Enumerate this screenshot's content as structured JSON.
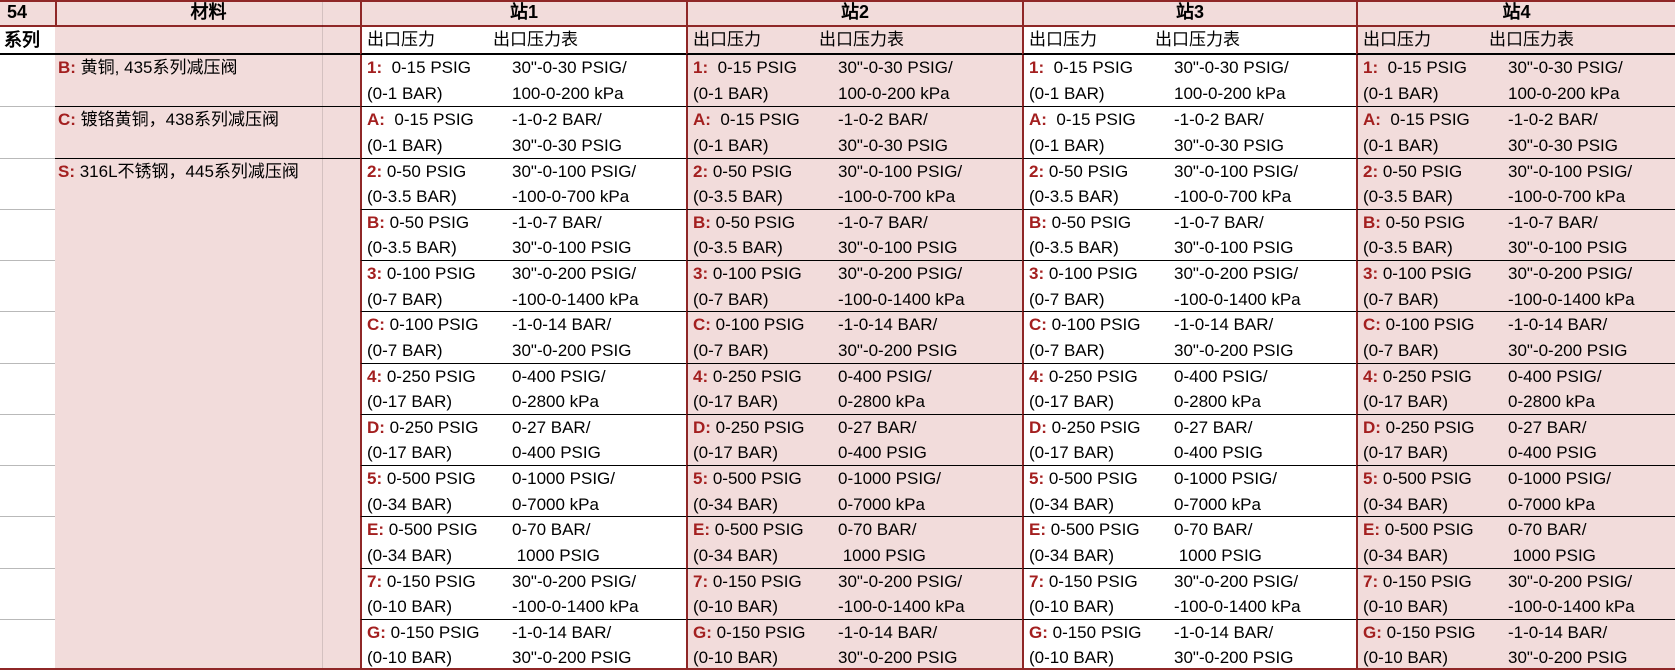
{
  "table": {
    "series_number": "54",
    "series_label": "系列",
    "material_header": "材料",
    "station_headers": [
      "站1",
      "站2",
      "站3",
      "站4"
    ],
    "sub_headers": {
      "pressure": "出口压力",
      "gauge": "出口压力表"
    },
    "materials": [
      {
        "code": "B:",
        "desc": " 黄铜, 435系列减压阀"
      },
      {
        "code": "C:",
        "desc": " 镀铬黄铜，438系列减压阀"
      },
      {
        "code": "S:",
        "desc": " 316L不锈钢，445系列减压阀"
      }
    ],
    "options": [
      {
        "code": "1:",
        "p1": "  0-15 PSIG",
        "p2": "(0-1 BAR)",
        "g1": "30\"-0-30 PSIG/",
        "g2": "100-0-200 kPa"
      },
      {
        "code": "A:",
        "p1": "  0-15 PSIG",
        "p2": "(0-1 BAR)",
        "g1": "-1-0-2 BAR/",
        "g2": "30\"-0-30 PSIG"
      },
      {
        "code": "2:",
        "p1": " 0-50 PSIG",
        "p2": "(0-3.5 BAR)",
        "g1": "30\"-0-100 PSIG/",
        "g2": "-100-0-700 kPa"
      },
      {
        "code": "B:",
        "p1": " 0-50 PSIG",
        "p2": "(0-3.5 BAR)",
        "g1": "-1-0-7 BAR/",
        "g2": "30\"-0-100 PSIG"
      },
      {
        "code": "3:",
        "p1": " 0-100 PSIG",
        "p2": "(0-7 BAR)",
        "g1": "30\"-0-200 PSIG/",
        "g2": "-100-0-1400 kPa"
      },
      {
        "code": "C:",
        "p1": " 0-100 PSIG",
        "p2": "(0-7 BAR)",
        "g1": "-1-0-14 BAR/",
        "g2": "30\"-0-200 PSIG"
      },
      {
        "code": "4:",
        "p1": " 0-250 PSIG",
        "p2": "(0-17 BAR)",
        "g1": "0-400 PSIG/",
        "g2": "0-2800 kPa"
      },
      {
        "code": "D:",
        "p1": " 0-250 PSIG",
        "p2": "(0-17 BAR)",
        "g1": "0-27 BAR/",
        "g2": "0-400 PSIG"
      },
      {
        "code": "5:",
        "p1": " 0-500 PSIG",
        "p2": "(0-34 BAR)",
        "g1": "0-1000 PSIG/",
        "g2": "0-7000 kPa"
      },
      {
        "code": "E:",
        "p1": " 0-500 PSIG",
        "p2": "(0-34 BAR)",
        "g1": "0-70 BAR/",
        "g2": " 1000 PSIG"
      },
      {
        "code": "7:",
        "p1": " 0-150 PSIG",
        "p2": "(0-10 BAR)",
        "g1": "30\"-0-200 PSIG/",
        "g2": "-100-0-1400 kPa"
      },
      {
        "code": "G:",
        "p1": " 0-150 PSIG",
        "p2": "(0-10 BAR)",
        "g1": "-1-0-14 BAR/",
        "g2": "30\"-0-200 PSIG"
      }
    ]
  },
  "colors": {
    "row_fill_pink": "#f2dcdb",
    "accent_red_border": "#8f2727",
    "option_label_red": "#a31f1f",
    "text_black": "#000000"
  }
}
